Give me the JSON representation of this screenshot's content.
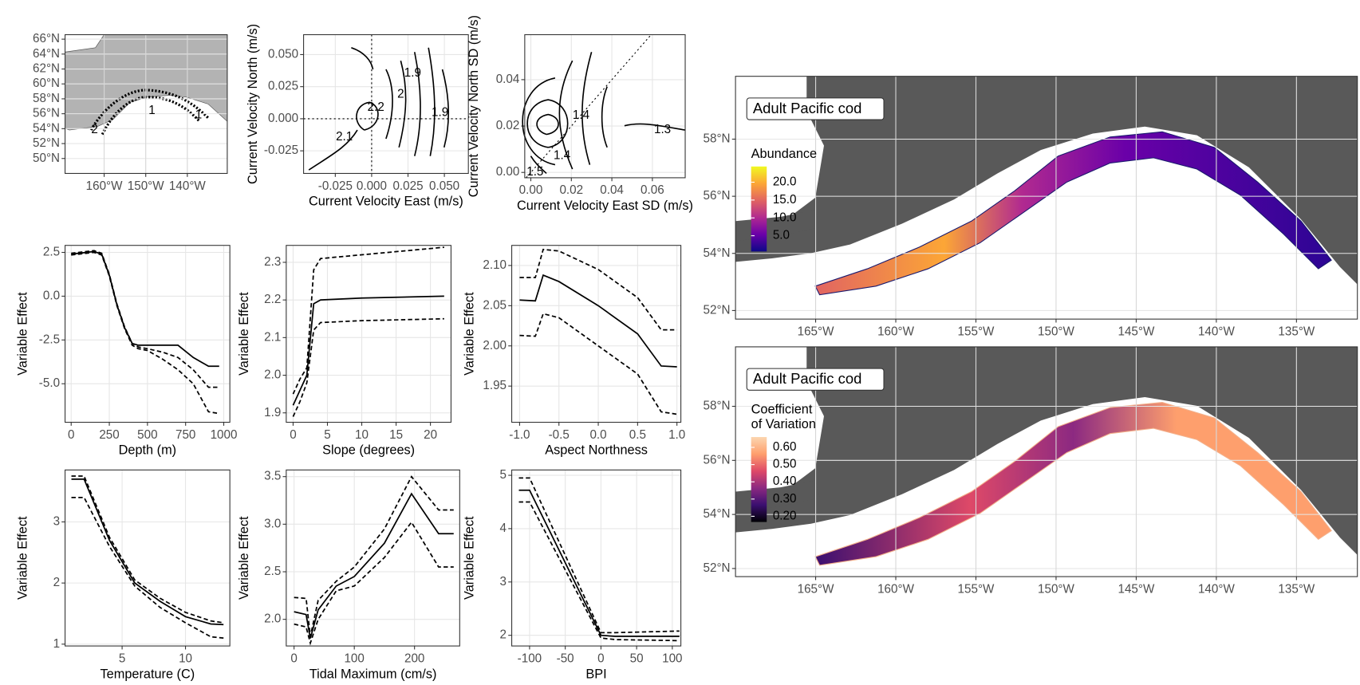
{
  "chart_data": [
    {
      "type": "map",
      "xticks": [
        {
          "value": -160,
          "label": "160°W"
        },
        {
          "value": -150,
          "label": "150°W"
        },
        {
          "value": -140,
          "label": "140°W"
        }
      ],
      "yticks": [
        {
          "value": 66,
          "label": "66°N"
        },
        {
          "value": 64,
          "label": "64°N"
        },
        {
          "value": 62,
          "label": "62°N"
        },
        {
          "value": 60,
          "label": "60°N"
        },
        {
          "value": 58,
          "label": "58°N"
        },
        {
          "value": 56,
          "label": "56°N"
        },
        {
          "value": 54,
          "label": "54°N"
        },
        {
          "value": 52,
          "label": "52°N"
        },
        {
          "value": 50,
          "label": "50°N"
        }
      ],
      "xlim": [
        -169.4,
        -130.4
      ],
      "ylim": [
        48.0,
        66.6
      ],
      "grid": true,
      "contour_labels": [
        {
          "x": -162.3,
          "y": 53.8,
          "level": 2
        },
        {
          "x": -148.5,
          "y": 56.4,
          "level": 1
        },
        {
          "x": -137.3,
          "y": 55.8,
          "level": 1
        }
      ]
    },
    {
      "type": "contour",
      "xlabel": "Current Velocity East (m/s)",
      "ylabel": "Current Velocity North (m/s)",
      "xlim": [
        -0.0468,
        0.0665
      ],
      "ylim": [
        -0.0426,
        0.0655
      ],
      "xticks": [
        -0.025,
        {
          "value": 0,
          "label": "0.000"
        },
        0.025,
        {
          "value": 0.05,
          "label": "0.050"
        }
      ],
      "yticks": [
        -0.025,
        {
          "value": 0,
          "label": "0.000"
        },
        0.025,
        {
          "value": 0.05,
          "label": "0.050"
        }
      ],
      "grid": true,
      "reference_lines": {
        "x": 0,
        "y": 0
      },
      "contour_labels": [
        {
          "x": 0.0282,
          "y": 0.0353,
          "level": 1.9
        },
        {
          "x": 0.02,
          "y": 0.0189,
          "level": 2
        },
        {
          "x": 0.0029,
          "y": 0.0088,
          "level": 2.2
        },
        {
          "x": 0.047,
          "y": 0.0047,
          "level": 1.9
        },
        {
          "x": -0.0188,
          "y": -0.0142,
          "level": 2.1
        }
      ]
    },
    {
      "type": "contour",
      "xlabel": "Current Velocity East SD (m/s)",
      "ylabel": "Current Velocity North SD (m/s)",
      "xlim": [
        -0.003,
        0.0762
      ],
      "ylim": [
        -0.0023,
        0.0594
      ],
      "xticks": [
        {
          "value": 0,
          "label": "0.00"
        },
        0.02,
        0.04,
        0.06
      ],
      "yticks": [
        {
          "value": 0,
          "label": "0.00"
        },
        0.02,
        0.04
      ],
      "grid": true,
      "identity_line": true,
      "contour_labels": [
        {
          "x": 0.0248,
          "y": 0.0245,
          "level": 1.4
        },
        {
          "x": 0.065,
          "y": 0.0183,
          "level": 1.3
        },
        {
          "x": 0.0154,
          "y": 0.0071,
          "level": 1.4
        },
        {
          "x": 0.0021,
          "y": 0.0,
          "level": 1.5
        }
      ]
    },
    {
      "type": "line",
      "xlabel": "Depth (m)",
      "ylabel": "Variable Effect",
      "xlim": [
        -40,
        1040
      ],
      "ylim": [
        -7.2,
        2.9
      ],
      "xticks": [
        0,
        250,
        500,
        750,
        1000
      ],
      "yticks": [
        {
          "value": 2.5,
          "label": "2.5"
        },
        {
          "value": 0,
          "label": "0.0"
        },
        {
          "value": -2.5,
          "label": "-2.5"
        },
        {
          "value": -5,
          "label": "-5.0"
        }
      ],
      "grid": true,
      "x": [
        0,
        50,
        100,
        150,
        200,
        250,
        300,
        350,
        400,
        440,
        500,
        600,
        700,
        800,
        900,
        970
      ],
      "series": [
        {
          "color": "#000000",
          "dashed": false,
          "values": [
            2.4,
            2.45,
            2.5,
            2.55,
            2.4,
            1.2,
            -0.5,
            -1.8,
            -2.7,
            -2.8,
            -2.8,
            -2.8,
            -2.8,
            -3.5,
            -4.0,
            -4.0
          ]
        },
        {
          "color": "#000000",
          "dashed": true,
          "values": [
            2.45,
            2.5,
            2.55,
            2.6,
            2.45,
            1.25,
            -0.45,
            -1.75,
            -2.7,
            -2.9,
            -3.0,
            -3.2,
            -3.5,
            -4.2,
            -5.2,
            -5.2
          ]
        },
        {
          "color": "#000000",
          "dashed": true,
          "values": [
            2.35,
            2.4,
            2.45,
            2.5,
            2.35,
            1.15,
            -0.55,
            -1.85,
            -2.8,
            -3.0,
            -3.1,
            -3.6,
            -4.2,
            -5.0,
            -6.6,
            -6.7
          ]
        }
      ]
    },
    {
      "type": "line",
      "xlabel": "Slope (degrees)",
      "ylabel": "Variable Effect",
      "xlim": [
        -1,
        23
      ],
      "ylim": [
        1.875,
        2.345
      ],
      "xticks": [
        0,
        5,
        10,
        15,
        20
      ],
      "yticks": [
        1.9,
        {
          "value": 2,
          "label": "2.0"
        },
        2.1,
        2.2,
        2.3
      ],
      "grid": true,
      "x": [
        0,
        1,
        2,
        3,
        4,
        10,
        22
      ],
      "series": [
        {
          "color": "#000000",
          "dashed": false,
          "values": [
            1.92,
            1.96,
            2.0,
            2.19,
            2.2,
            2.205,
            2.21
          ]
        },
        {
          "color": "#000000",
          "dashed": true,
          "values": [
            1.95,
            1.99,
            2.02,
            2.28,
            2.31,
            2.32,
            2.34
          ]
        },
        {
          "color": "#000000",
          "dashed": true,
          "values": [
            1.89,
            1.93,
            1.98,
            2.12,
            2.14,
            2.145,
            2.15
          ]
        }
      ]
    },
    {
      "type": "line",
      "xlabel": "Aspect Northness",
      "ylabel": "Variable Effect",
      "xlim": [
        -1.1,
        1.05
      ],
      "ylim": [
        1.905,
        2.125
      ],
      "xticks": [
        {
          "value": -1,
          "label": "-1.0"
        },
        -0.5,
        {
          "value": 0,
          "label": "0.0"
        },
        0.5,
        {
          "value": 1,
          "label": "1.0"
        }
      ],
      "yticks": [
        1.95,
        {
          "value": 2,
          "label": "2.00"
        },
        2.05,
        {
          "value": 2.1,
          "label": "2.10"
        }
      ],
      "grid": true,
      "x": [
        -1,
        -0.8,
        -0.7,
        -0.5,
        0,
        0.5,
        0.8,
        1
      ],
      "series": [
        {
          "color": "#000000",
          "dashed": false,
          "values": [
            2.057,
            2.056,
            2.088,
            2.08,
            2.05,
            2.015,
            1.975,
            1.974
          ]
        },
        {
          "color": "#000000",
          "dashed": true,
          "values": [
            2.085,
            2.085,
            2.12,
            2.118,
            2.095,
            2.06,
            2.02,
            2.02
          ]
        },
        {
          "color": "#000000",
          "dashed": true,
          "values": [
            2.013,
            2.012,
            2.04,
            2.035,
            2.0,
            1.965,
            1.918,
            1.915
          ]
        }
      ]
    },
    {
      "type": "line",
      "xlabel": "Temperature (C)",
      "ylabel": "Variable Effect",
      "xlim": [
        0.5,
        13.5
      ],
      "ylim": [
        0.97,
        3.85
      ],
      "xticks": [
        5,
        10
      ],
      "yticks": [
        1,
        2,
        3
      ],
      "grid": true,
      "x": [
        1,
        2,
        4,
        6,
        8,
        10,
        12,
        13
      ],
      "series": [
        {
          "color": "#000000",
          "dashed": false,
          "values": [
            3.7,
            3.7,
            2.7,
            2.0,
            1.7,
            1.45,
            1.33,
            1.32
          ]
        },
        {
          "color": "#000000",
          "dashed": true,
          "values": [
            3.75,
            3.75,
            2.75,
            2.05,
            1.75,
            1.52,
            1.38,
            1.35
          ]
        },
        {
          "color": "#000000",
          "dashed": true,
          "values": [
            3.4,
            3.4,
            2.6,
            1.95,
            1.6,
            1.35,
            1.12,
            1.1
          ]
        }
      ]
    },
    {
      "type": "line",
      "xlabel": "Tidal Maximum (cm/s)",
      "ylabel": "Variable Effect",
      "xlim": [
        -13,
        275
      ],
      "ylim": [
        1.72,
        3.57
      ],
      "xticks": [
        0,
        100,
        200
      ],
      "yticks": [
        {
          "value": 2,
          "label": "2.0"
        },
        2.5,
        {
          "value": 3,
          "label": "3.0"
        },
        3.5
      ],
      "grid": true,
      "x": [
        0,
        20,
        27,
        40,
        70,
        100,
        150,
        195,
        240,
        265
      ],
      "series": [
        {
          "color": "#000000",
          "dashed": false,
          "values": [
            2.08,
            2.05,
            1.8,
            2.1,
            2.35,
            2.45,
            2.8,
            3.32,
            2.9,
            2.9
          ]
        },
        {
          "color": "#000000",
          "dashed": true,
          "values": [
            2.23,
            2.22,
            1.82,
            2.2,
            2.4,
            2.55,
            2.95,
            3.5,
            3.15,
            3.15
          ]
        },
        {
          "color": "#000000",
          "dashed": true,
          "values": [
            1.95,
            1.92,
            1.75,
            2.0,
            2.3,
            2.35,
            2.65,
            3.02,
            2.55,
            2.55
          ]
        }
      ]
    },
    {
      "type": "line",
      "xlabel": "BPI",
      "ylabel": "Variable Effect",
      "xlim": [
        -125,
        112
      ],
      "ylim": [
        1.8,
        5.1
      ],
      "xticks": [
        -100,
        -50,
        0,
        50,
        100
      ],
      "yticks": [
        2,
        3,
        4,
        5
      ],
      "grid": true,
      "x": [
        -115,
        -100,
        0,
        20,
        110
      ],
      "series": [
        {
          "color": "#000000",
          "dashed": false,
          "values": [
            4.72,
            4.72,
            2.0,
            1.98,
            1.98
          ]
        },
        {
          "color": "#000000",
          "dashed": true,
          "values": [
            4.95,
            4.95,
            2.05,
            2.05,
            2.08
          ]
        },
        {
          "color": "#000000",
          "dashed": true,
          "values": [
            4.5,
            4.5,
            1.95,
            1.92,
            1.9
          ]
        }
      ]
    },
    {
      "type": "map",
      "title": "Adult Pacific cod",
      "xlim": [
        -170,
        -131.2
      ],
      "ylim": [
        51.7,
        60.2
      ],
      "grid": true,
      "xticks": [
        {
          "value": -165,
          "label": "165°W"
        },
        {
          "value": -160,
          "label": "160°W"
        },
        {
          "value": -155,
          "label": "155°W"
        },
        {
          "value": -150,
          "label": "150°W"
        },
        {
          "value": -145,
          "label": "145°W"
        },
        {
          "value": -140,
          "label": "140°W"
        },
        {
          "value": -135,
          "label": "135°W"
        }
      ],
      "yticks": [
        {
          "value": 58,
          "label": "58°N"
        },
        {
          "value": 56,
          "label": "56°N"
        },
        {
          "value": 54,
          "label": "54°N"
        },
        {
          "value": 52,
          "label": "52°N"
        }
      ],
      "legend": {
        "title": [
          "Abundance"
        ],
        "lim": [
          0.6,
          24.4
        ],
        "colors": [
          "#0d0887",
          "#6a00a8",
          "#b12a90",
          "#e16462",
          "#fca636",
          "#f0f921"
        ],
        "ticks": [
          {
            "value": 20,
            "label": "20.0"
          },
          {
            "value": 15,
            "label": "15.0"
          },
          {
            "value": 10,
            "label": "10.0"
          },
          {
            "value": 5,
            "label": "5.0"
          }
        ]
      }
    },
    {
      "type": "map",
      "title": "Adult Pacific cod",
      "xlim": [
        -170,
        -131.2
      ],
      "ylim": [
        51.7,
        60.2
      ],
      "grid": true,
      "xticks": [
        {
          "value": -165,
          "label": "165°W"
        },
        {
          "value": -160,
          "label": "160°W"
        },
        {
          "value": -155,
          "label": "155°W"
        },
        {
          "value": -150,
          "label": "150°W"
        },
        {
          "value": -145,
          "label": "145°W"
        },
        {
          "value": -140,
          "label": "140°W"
        },
        {
          "value": -135,
          "label": "135°W"
        }
      ],
      "yticks": [
        {
          "value": 58,
          "label": "58°N"
        },
        {
          "value": 56,
          "label": "56°N"
        },
        {
          "value": 54,
          "label": "54°N"
        },
        {
          "value": 52,
          "label": "52°N"
        }
      ],
      "legend": {
        "title": [
          "Coefficient",
          "of Variation"
        ],
        "lim": [
          0.167,
          0.66
        ],
        "colors": [
          "#000004",
          "#3b0f70",
          "#8c2981",
          "#de4968",
          "#fe9f6d",
          "#fcd6b0"
        ],
        "ticks": [
          {
            "value": 0.6,
            "label": "0.60"
          },
          {
            "value": 0.5,
            "label": "0.50"
          },
          {
            "value": 0.4,
            "label": "0.40"
          },
          {
            "value": 0.3,
            "label": "0.30"
          },
          {
            "value": 0.2,
            "label": "0.20"
          }
        ]
      }
    }
  ]
}
